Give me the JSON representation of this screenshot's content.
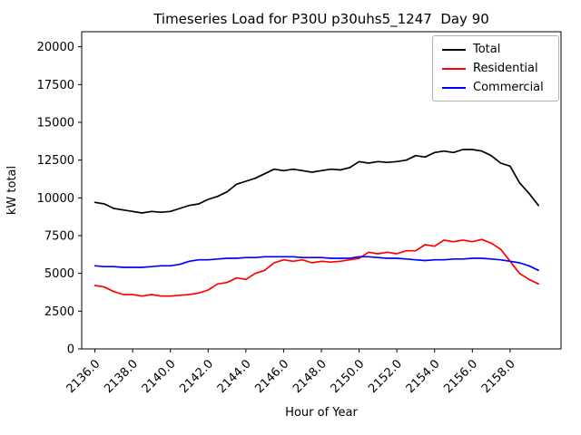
{
  "chart_data": {
    "type": "line",
    "title": "Timeseries Load for P30U p30uhs5_1247  Day 90",
    "xlabel": "Hour of Year",
    "ylabel": "kW total",
    "xlim": [
      2135.3,
      2160.7
    ],
    "ylim": [
      0,
      21000
    ],
    "grid": false,
    "legend_position": "upper right",
    "xticks": [
      2136,
      2138,
      2140,
      2142,
      2144,
      2146,
      2148,
      2150,
      2152,
      2154,
      2156,
      2158
    ],
    "xtick_labels": [
      "2136.0",
      "2138.0",
      "2140.0",
      "2142.0",
      "2144.0",
      "2146.0",
      "2148.0",
      "2150.0",
      "2152.0",
      "2154.0",
      "2156.0",
      "2158.0"
    ],
    "yticks": [
      0,
      2500,
      5000,
      7500,
      10000,
      12500,
      15000,
      17500,
      20000
    ],
    "ytick_labels": [
      "0",
      "2500",
      "5000",
      "7500",
      "10000",
      "12500",
      "15000",
      "17500",
      "20000"
    ],
    "x": [
      2136.0,
      2136.5,
      2137.0,
      2137.5,
      2138.0,
      2138.5,
      2139.0,
      2139.5,
      2140.0,
      2140.5,
      2141.0,
      2141.5,
      2142.0,
      2142.5,
      2143.0,
      2143.5,
      2144.0,
      2144.5,
      2145.0,
      2145.5,
      2146.0,
      2146.5,
      2147.0,
      2147.5,
      2148.0,
      2148.5,
      2149.0,
      2149.5,
      2150.0,
      2150.5,
      2151.0,
      2151.5,
      2152.0,
      2152.5,
      2153.0,
      2153.5,
      2154.0,
      2154.5,
      2155.0,
      2155.5,
      2156.0,
      2156.5,
      2157.0,
      2157.5,
      2158.0,
      2158.5,
      2159.0,
      2159.5
    ],
    "series": [
      {
        "name": "Total",
        "color": "#000000",
        "values": [
          9700,
          9600,
          9300,
          9200,
          9100,
          9000,
          9100,
          9050,
          9100,
          9300,
          9500,
          9600,
          9900,
          10100,
          10400,
          10900,
          11100,
          11300,
          11600,
          11900,
          11800,
          11900,
          11800,
          11700,
          11800,
          11900,
          11850,
          12000,
          12400,
          12300,
          12400,
          12350,
          12400,
          12500,
          12800,
          12700,
          13000,
          13100,
          13000,
          13200,
          13200,
          13100,
          12800,
          12300,
          12100,
          11000,
          10300,
          9500
        ]
      },
      {
        "name": "Residential",
        "color": "#ff0000",
        "values": [
          4200,
          4100,
          3800,
          3600,
          3600,
          3500,
          3600,
          3500,
          3500,
          3550,
          3600,
          3700,
          3900,
          4300,
          4400,
          4700,
          4600,
          5000,
          5200,
          5700,
          5900,
          5800,
          5900,
          5700,
          5800,
          5750,
          5800,
          5900,
          6000,
          6400,
          6300,
          6400,
          6300,
          6500,
          6500,
          6900,
          6800,
          7200,
          7100,
          7200,
          7100,
          7250,
          7000,
          6600,
          5800,
          5000,
          4600,
          4300
        ]
      },
      {
        "name": "Commercial",
        "color": "#0000ff",
        "values": [
          5500,
          5450,
          5450,
          5400,
          5400,
          5400,
          5450,
          5500,
          5500,
          5600,
          5800,
          5900,
          5900,
          5950,
          6000,
          6000,
          6050,
          6050,
          6100,
          6100,
          6100,
          6100,
          6050,
          6050,
          6050,
          6000,
          6000,
          6000,
          6100,
          6100,
          6050,
          6000,
          6000,
          5950,
          5900,
          5850,
          5900,
          5900,
          5950,
          5950,
          6000,
          6000,
          5950,
          5900,
          5800,
          5700,
          5500,
          5200
        ]
      }
    ]
  }
}
